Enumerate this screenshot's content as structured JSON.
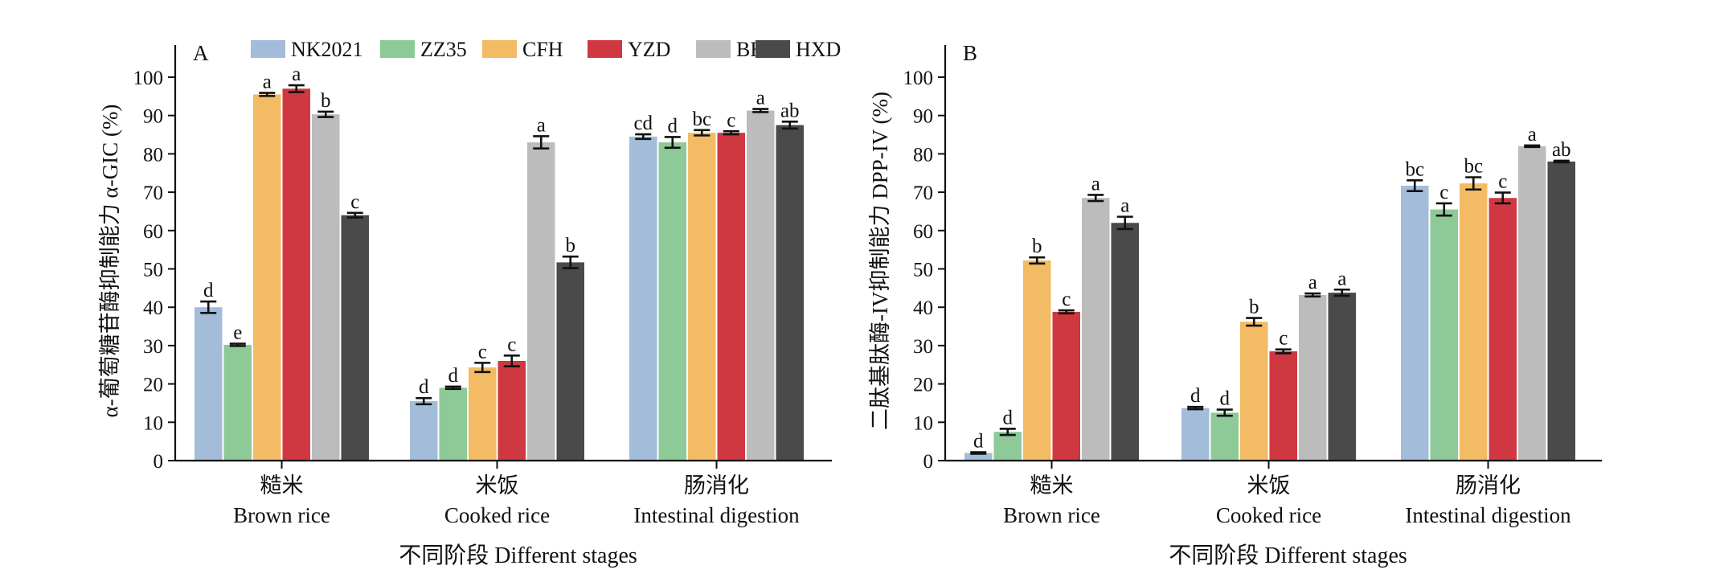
{
  "colors": {
    "NK2021": "#a3bcda",
    "ZZ35": "#8dca97",
    "CFH": "#f2bb64",
    "YZD": "#cf3841",
    "BH": "#bcbcbc",
    "HXD": "#4a4a4a"
  },
  "legend": [
    "NK2021",
    "ZZ35",
    "CFH",
    "YZD",
    "BH",
    "HXD"
  ],
  "chart_data": [
    {
      "type": "bar",
      "panel": "A",
      "ylabel": "α-葡萄糖苷酶抑制能力 α-GIC (%)",
      "xlabel": "不同阶段 Different stages",
      "ylim": [
        0,
        100
      ],
      "yticks": [
        0,
        10,
        20,
        30,
        40,
        50,
        60,
        70,
        80,
        90,
        100
      ],
      "categories": [
        {
          "zh": "糙米",
          "en": "Brown rice"
        },
        {
          "zh": "米饭",
          "en": "Cooked rice"
        },
        {
          "zh": "肠消化",
          "en": "Intestinal digestion"
        }
      ],
      "series": [
        {
          "name": "NK2021",
          "values": [
            40,
            15.5,
            84.5
          ],
          "errors": [
            1.5,
            0.8,
            0.6
          ],
          "labels": [
            "d",
            "d",
            "cd"
          ]
        },
        {
          "name": "ZZ35",
          "values": [
            30.2,
            19,
            83
          ],
          "errors": [
            0.3,
            0.3,
            1.4
          ],
          "labels": [
            "e",
            "d",
            "d"
          ]
        },
        {
          "name": "CFH",
          "values": [
            95.5,
            24.3,
            85.5
          ],
          "errors": [
            0.4,
            1.2,
            0.7
          ],
          "labels": [
            "a",
            "c",
            "bc"
          ]
        },
        {
          "name": "YZD",
          "values": [
            97,
            26,
            85.5
          ],
          "errors": [
            0.9,
            1.4,
            0.4
          ],
          "labels": [
            "a",
            "c",
            "c"
          ]
        },
        {
          "name": "BH",
          "values": [
            90.3,
            83,
            91.3
          ],
          "errors": [
            0.7,
            1.6,
            0.4
          ],
          "labels": [
            "b",
            "a",
            "a"
          ]
        },
        {
          "name": "HXD",
          "values": [
            64,
            51.7,
            87.5
          ],
          "errors": [
            0.6,
            1.5,
            0.9
          ],
          "labels": [
            "c",
            "b",
            "ab"
          ]
        }
      ]
    },
    {
      "type": "bar",
      "panel": "B",
      "ylabel": "二肽基肽酶-IV抑制能力 DPP-IV (%)",
      "xlabel": "不同阶段 Different stages",
      "ylim": [
        0,
        100
      ],
      "yticks": [
        0,
        10,
        20,
        30,
        40,
        50,
        60,
        70,
        80,
        90,
        100
      ],
      "categories": [
        {
          "zh": "糙米",
          "en": "Brown rice"
        },
        {
          "zh": "米饭",
          "en": "Cooked rice"
        },
        {
          "zh": "肠消化",
          "en": "Intestinal digestion"
        }
      ],
      "series": [
        {
          "name": "NK2021",
          "values": [
            2,
            13.7,
            71.7
          ],
          "errors": [
            0.2,
            0.3,
            1.4
          ],
          "labels": [
            "d",
            "d",
            "bc"
          ]
        },
        {
          "name": "ZZ35",
          "values": [
            7.5,
            12.5,
            65.5
          ],
          "errors": [
            0.8,
            0.8,
            1.6
          ],
          "labels": [
            "d",
            "d",
            "c"
          ]
        },
        {
          "name": "CFH",
          "values": [
            52.2,
            36.2,
            72.3
          ],
          "errors": [
            0.8,
            1.0,
            1.6
          ],
          "labels": [
            "b",
            "b",
            "bc"
          ]
        },
        {
          "name": "YZD",
          "values": [
            38.8,
            28.5,
            68.5
          ],
          "errors": [
            0.4,
            0.5,
            1.4
          ],
          "labels": [
            "c",
            "c",
            "c"
          ]
        },
        {
          "name": "BH",
          "values": [
            68.5,
            43.2,
            82
          ],
          "errors": [
            0.8,
            0.4,
            0.2
          ],
          "labels": [
            "a",
            "a",
            "a"
          ]
        },
        {
          "name": "HXD",
          "values": [
            62,
            43.8,
            78
          ],
          "errors": [
            1.6,
            0.8,
            0.2
          ],
          "labels": [
            "a",
            "a",
            "ab"
          ]
        }
      ]
    }
  ]
}
